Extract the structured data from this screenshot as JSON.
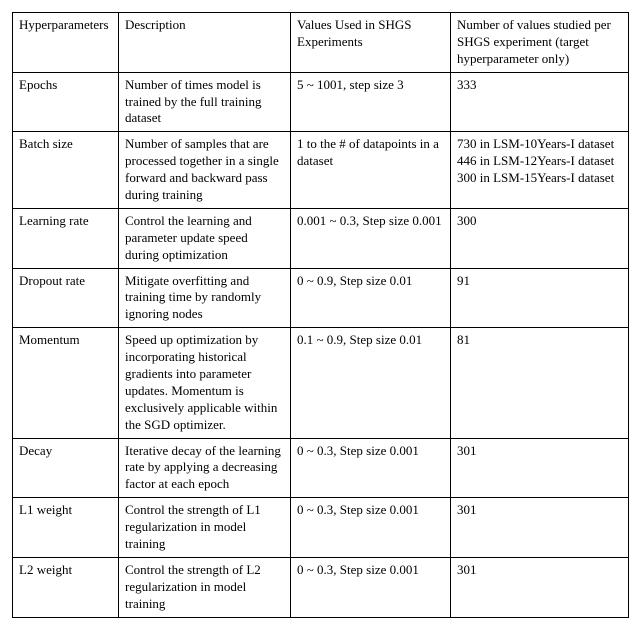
{
  "table": {
    "columns": [
      "Hyperparameters",
      "Description",
      "Values Used in SHGS Experiments",
      "Number of values studied per SHGS experiment (target hyperparameter only)"
    ],
    "rows": [
      {
        "name": "Epochs",
        "desc": "Number of times model is trained by the full training dataset",
        "values": "5 ~ 1001, step size 3",
        "num": "333"
      },
      {
        "name": "Batch size",
        "desc": "Number of samples that are processed together in a single forward and backward pass during training",
        "values": "1 to the # of datapoints in a dataset",
        "num_lines": [
          "730 in LSM-10Years-I dataset",
          "446 in LSM-12Years-I dataset",
          "300 in LSM-15Years-I dataset"
        ]
      },
      {
        "name": "Learning rate",
        "desc": "Control the learning and parameter update speed during optimization",
        "values": "0.001 ~ 0.3, Step size 0.001",
        "num": "300"
      },
      {
        "name": "Dropout rate",
        "desc": "Mitigate overfitting and training time by randomly ignoring nodes",
        "values": "0 ~ 0.9, Step size 0.01",
        "num": "91"
      },
      {
        "name": "Momentum",
        "desc": "Speed up optimization by incorporating historical gradients into parameter updates. Momentum is exclusively applicable within the SGD optimizer.",
        "values": "0.1 ~ 0.9, Step size 0.01",
        "num": "81"
      },
      {
        "name": "Decay",
        "desc": "Iterative decay of the learning rate by applying a decreasing factor at each epoch",
        "values": "0 ~ 0.3, Step size 0.001",
        "num": "301"
      },
      {
        "name": "L1 weight",
        "desc": "Control the strength of L1 regularization in model training",
        "values": "0 ~ 0.3, Step size 0.001",
        "num": "301"
      },
      {
        "name": "L2 weight",
        "desc": "Control the strength of L2 regularization in model training",
        "values": "0 ~ 0.3, Step size 0.001",
        "num": "301"
      }
    ],
    "colors": {
      "border": "#000000",
      "background": "#ffffff",
      "text": "#000000"
    },
    "font_family": "Times New Roman",
    "font_size_pt": 10
  }
}
